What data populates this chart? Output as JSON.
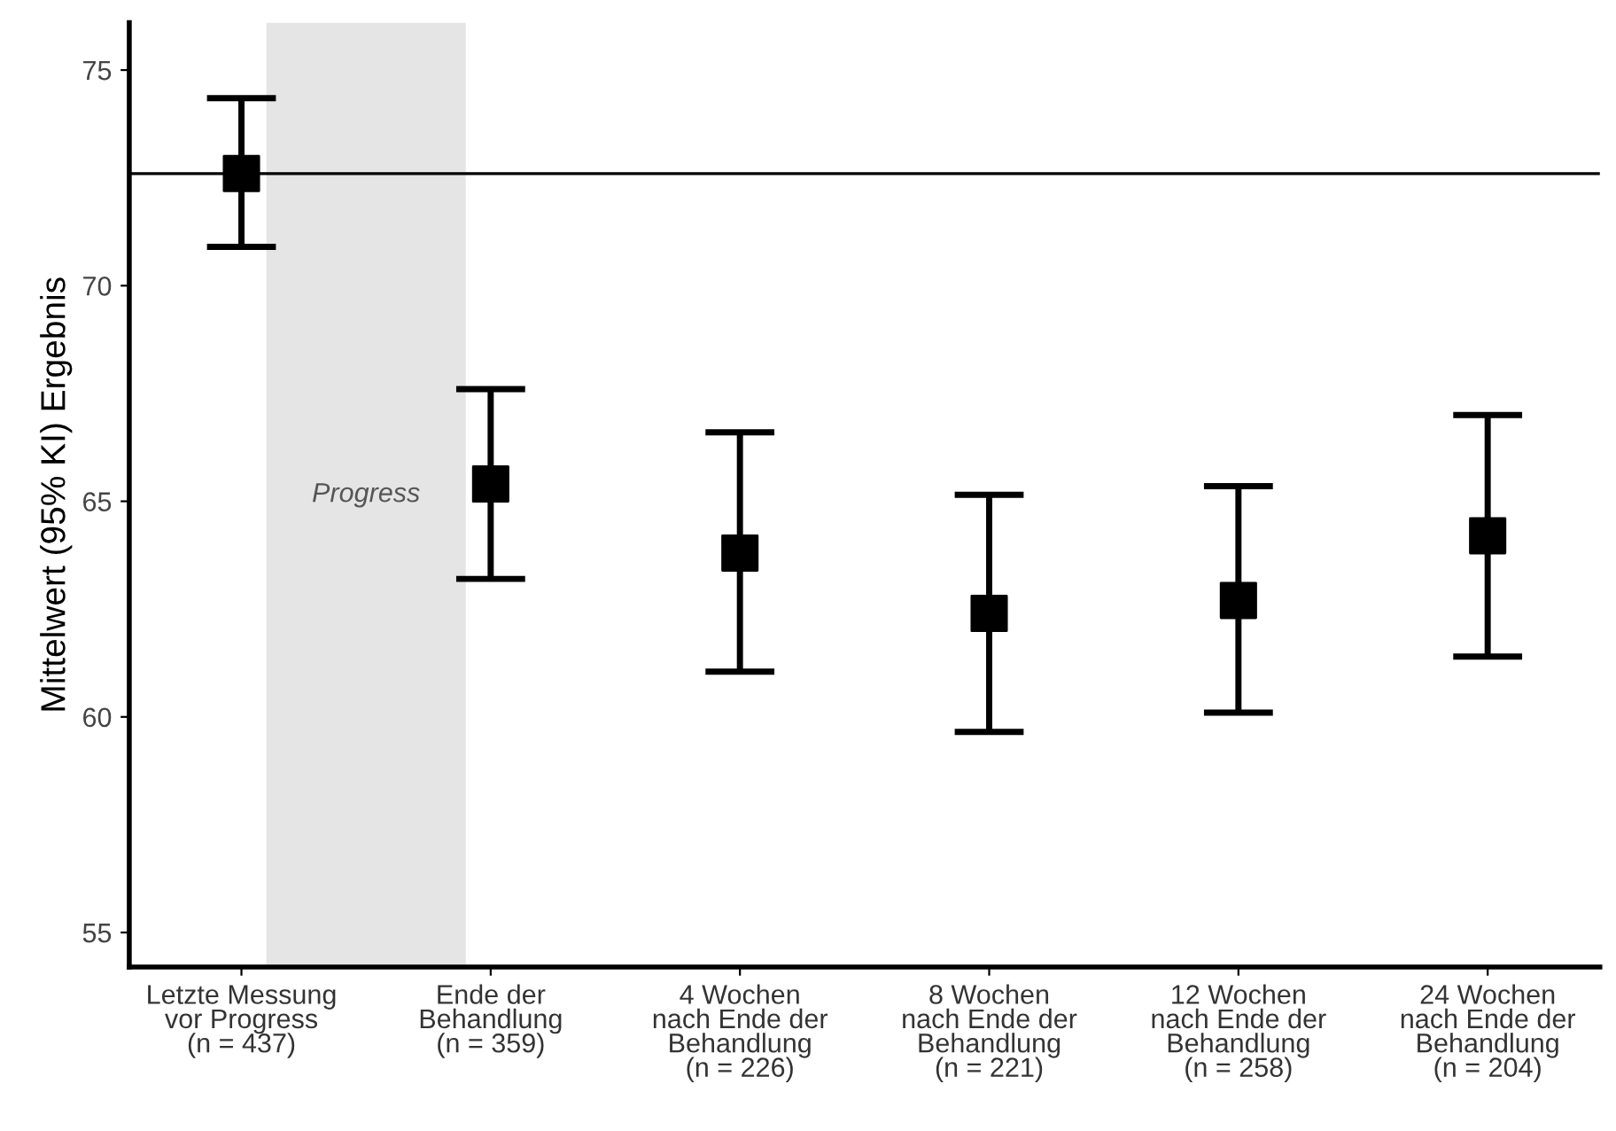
{
  "chart_data": {
    "type": "scatter",
    "ylabel": "Mittelwert (95% KI) Ergebnis",
    "categories": [
      "Letzte Messung\nvor Progress\n(n = 437)",
      "Ende der\nBehandlung\n(n = 359)",
      "4 Wochen\nnach Ende der\nBehandlung\n(n = 226)",
      "8 Wochen\nnach Ende der\nBehandlung\n(n = 221)",
      "12 Wochen\nnach Ende der\nBehandlung\n(n = 258)",
      "24 Wochen\nnach Ende der\nBehandlung\n(n = 204)"
    ],
    "series": [
      {
        "color": "#000000",
        "values": [
          72.6,
          65.4,
          63.8,
          62.4,
          62.7,
          64.2
        ],
        "errors": [
          [
            70.9,
            74.35
          ],
          [
            63.2,
            67.6
          ],
          [
            61.05,
            66.6
          ],
          [
            59.65,
            65.15
          ],
          [
            60.1,
            65.35
          ],
          [
            61.4,
            67.0
          ]
        ]
      }
    ],
    "marker": "square",
    "ylim": [
      54.2,
      76.1
    ],
    "yticks": [
      55,
      60,
      65,
      70,
      75
    ],
    "grid": false,
    "legend": false,
    "ref_lines": [
      {
        "axis": "y",
        "value": 72.6,
        "color": "#000000",
        "line_style": "solid"
      }
    ],
    "bands": [
      {
        "axis": "x",
        "from": "Letzte Messung\nvor Progress\n(n = 437)",
        "to": "Ende der\nBehandlung\n(n = 359)",
        "label": "Progress",
        "color": "#e5e5e5"
      }
    ]
  }
}
